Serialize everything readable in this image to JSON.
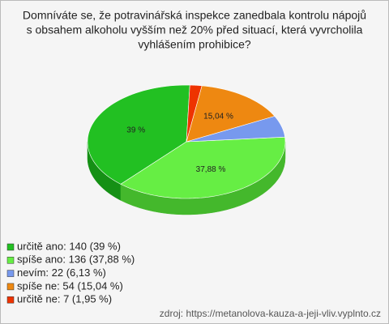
{
  "chart_data": {
    "type": "pie",
    "title": [
      "Domníváte se, že potravinářská inspekce zanedbala kontrolu nápojů",
      "s obsahem alkoholu vyšším než 20% před situací, která vyvrcholila",
      "vyhlášením prohibice?"
    ],
    "categories": [
      "určitě ano: 140 (39 %)",
      "spíše ano: 136 (37,88 %)",
      "nevím: 22 (6,13 %)",
      "spíše ne: 54 (15,04 %)",
      "určitě ne: 7 (1,95 %)"
    ],
    "values": [
      39,
      37.88,
      6.13,
      15.04,
      1.95
    ],
    "value_labels": [
      "39 %",
      "37,88 %",
      null,
      "15,04 %",
      null
    ],
    "colors": [
      "#22c022",
      "#66ee44",
      "#7799ee",
      "#ee8811",
      "#ee3300"
    ],
    "side_colors": [
      "#159015",
      "#44b82c",
      "#5470c0",
      "#b86408",
      "#b02400"
    ],
    "source": "zdroj: https://metanolova-kauza-a-jeji-vliv.vyplnto.cz"
  }
}
